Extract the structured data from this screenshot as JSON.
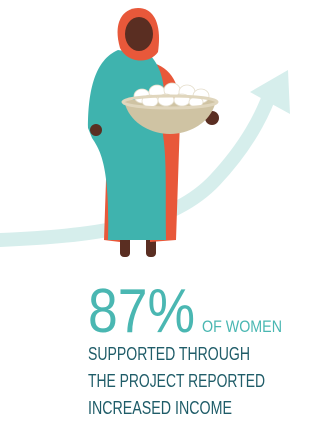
{
  "stat": {
    "value": "87%",
    "suffix": "OF WOMEN",
    "lines": [
      "SUPPORTED THROUGH",
      "THE PROJECT REPORTED",
      "INCREASED INCOME"
    ]
  }
}
